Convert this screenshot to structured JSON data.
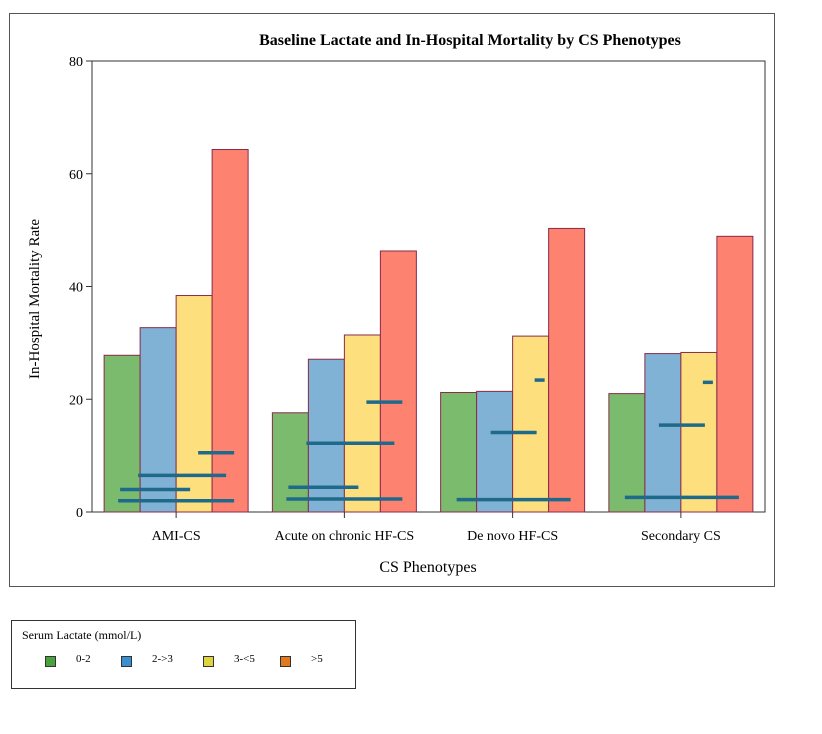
{
  "chart_data": {
    "type": "bar",
    "title": "Baseline Lactate and In-Hospital Mortality by CS Phenotypes",
    "xlabel": "CS Phenotypes",
    "ylabel": "In-Hospital Mortality Rate",
    "ylim": [
      0,
      80
    ],
    "yticks": [
      0,
      20,
      40,
      60,
      80
    ],
    "categories": [
      "AMI-CS",
      "Acute on chronic HF-CS",
      "De novo HF-CS",
      "Secondary CS"
    ],
    "series": [
      {
        "name": "0-2",
        "color": "#7bbb6e",
        "values": [
          27.8,
          17.6,
          21.2,
          21.0
        ]
      },
      {
        "name": "2->3",
        "color": "#80b2d6",
        "values": [
          32.7,
          27.1,
          21.4,
          28.1
        ]
      },
      {
        "name": "3-<5",
        "color": "#fde07d",
        "values": [
          38.4,
          31.4,
          31.2,
          28.3
        ]
      },
      {
        "name": ">5",
        "color": "#fd8270",
        "values": [
          64.3,
          46.3,
          50.3,
          48.9
        ]
      }
    ],
    "proportion_markers": {
      "color": "#1f6a8a",
      "values": [
        [
          2.0,
          4.0,
          6.5,
          10.5
        ],
        [
          2.3,
          4.4,
          12.2,
          19.5
        ],
        [
          2.2,
          14.1,
          23.4
        ],
        [
          2.6,
          15.4,
          23.0
        ]
      ]
    },
    "legend": {
      "title": "Serum Lactate (mmol/L)",
      "position": "bottom-left",
      "swatch_colors": [
        "#4aa23e",
        "#3a8fd0",
        "#dfd33f",
        "#e07a22"
      ]
    }
  }
}
